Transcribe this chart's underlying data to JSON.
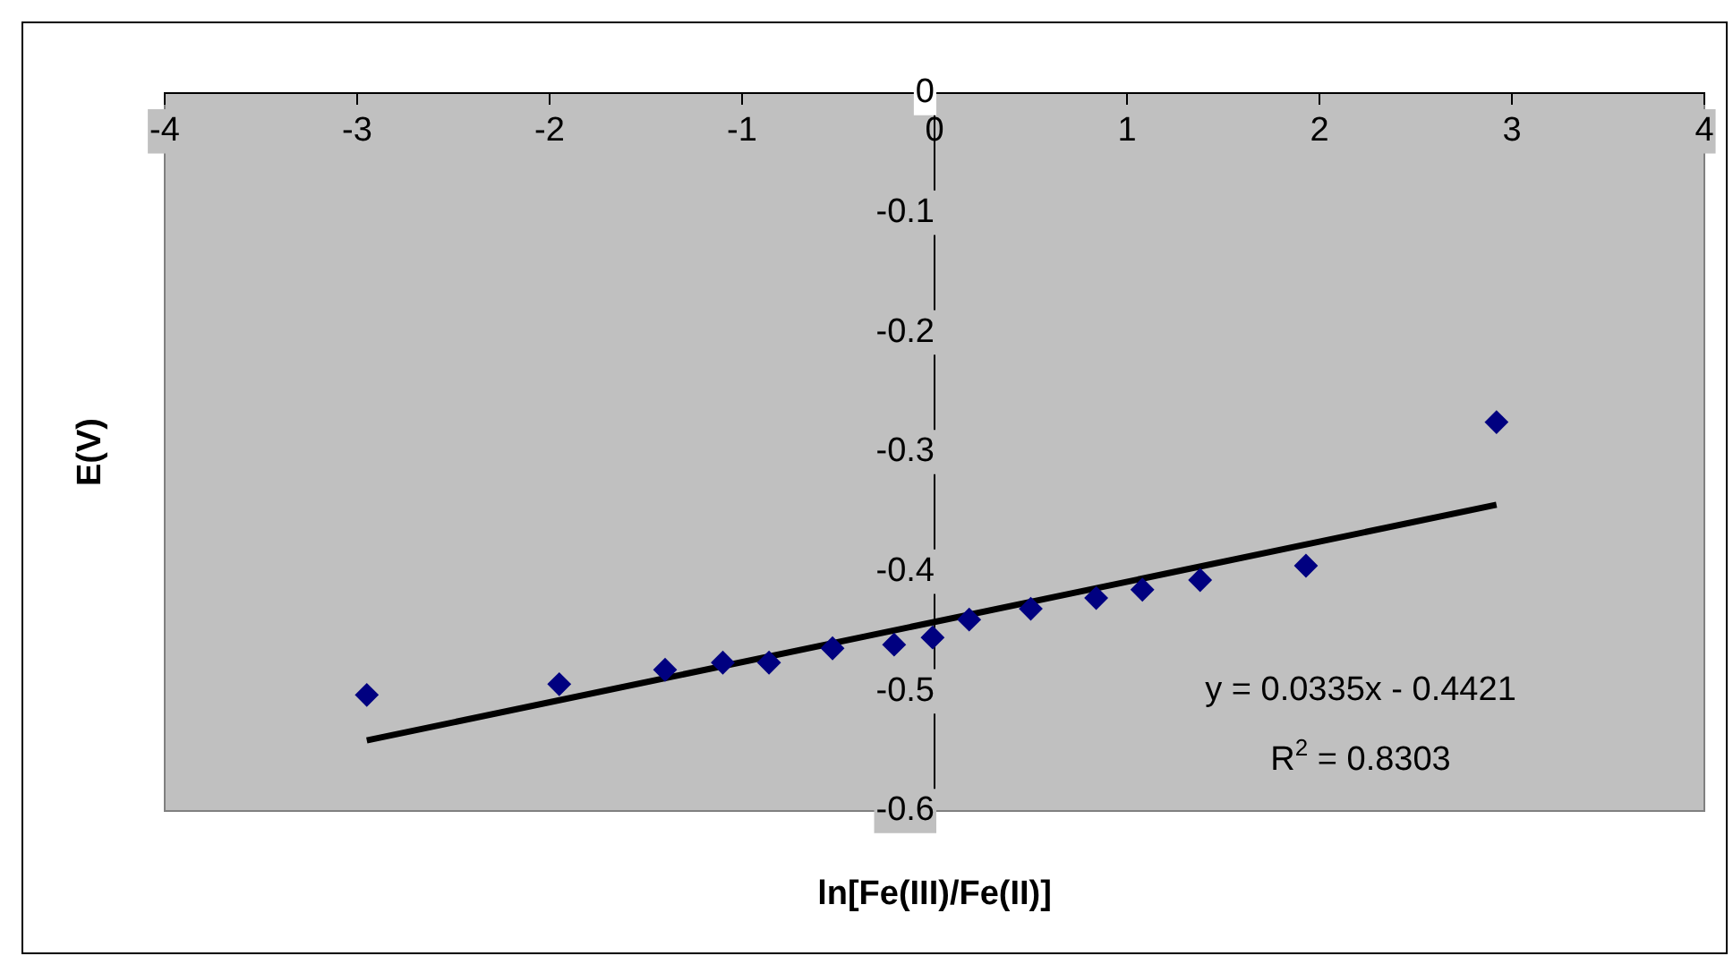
{
  "chart_data": {
    "type": "scatter",
    "xlabel": "ln[Fe(III)/Fe(II)]",
    "ylabel": "E(V)",
    "annotations": [
      "y = 0.0335x - 0.4421",
      "R$^{2}$ = 0.8303"
    ],
    "xlim": [
      -4,
      4
    ],
    "ylim": [
      -0.6,
      0
    ],
    "xticks": [
      -4,
      -3,
      -2,
      -1,
      0,
      1,
      2,
      3,
      4
    ],
    "yticks": [
      0,
      -0.1,
      -0.2,
      -0.3,
      -0.4,
      -0.5,
      -0.6
    ],
    "grid": false,
    "legend": false,
    "marker": "diamond",
    "series": [
      {
        "color": "#000080",
        "x": [
          -2.95,
          -1.95,
          -1.4,
          -1.1,
          -0.86,
          -0.53,
          -0.21,
          -0.01,
          0.18,
          0.5,
          0.84,
          1.08,
          1.38,
          1.93,
          2.92
        ],
        "values": [
          -0.503,
          -0.494,
          -0.482,
          -0.476,
          -0.476,
          -0.464,
          -0.461,
          -0.455,
          -0.44,
          -0.431,
          -0.422,
          -0.415,
          -0.407,
          -0.395,
          -0.275
        ]
      },
      {
        "type": "line",
        "color": "#000000",
        "marker": "none",
        "x": [
          -2.95,
          2.92
        ],
        "values": [
          -0.541,
          -0.344
        ]
      }
    ]
  }
}
